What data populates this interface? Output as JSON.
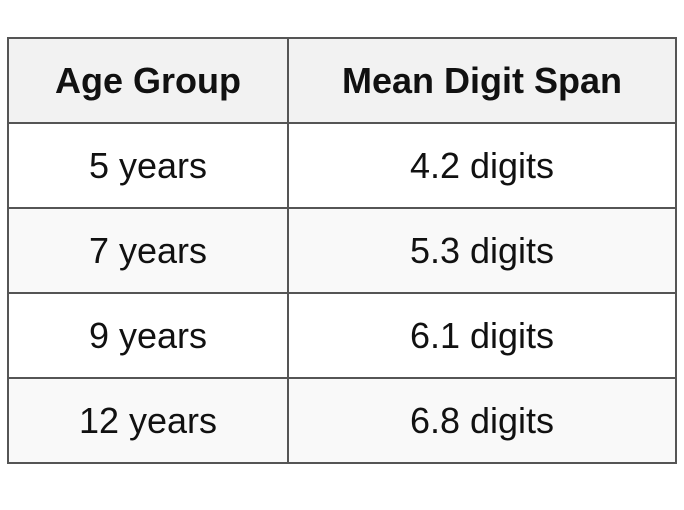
{
  "table": {
    "header": [
      "Age Group",
      "Mean Digit Span"
    ],
    "rows": [
      [
        "5 years",
        "4.2 digits"
      ],
      [
        "7 years",
        "5.3 digits"
      ],
      [
        "9 years",
        "6.1 digits"
      ],
      [
        "12 years",
        "6.8 digits"
      ]
    ]
  }
}
